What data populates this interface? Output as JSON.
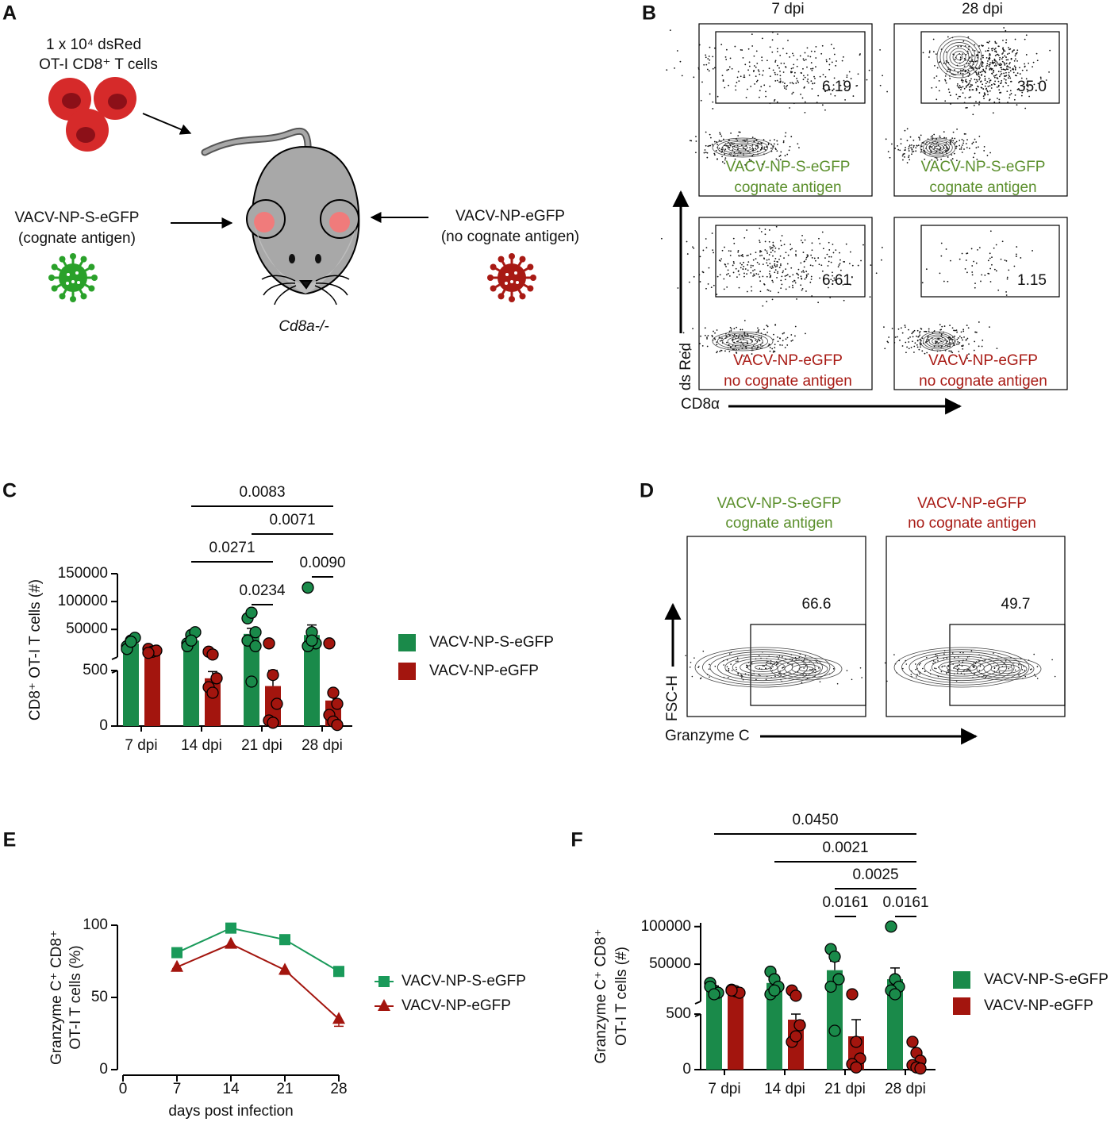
{
  "panel_labels": [
    "A",
    "B",
    "C",
    "D",
    "E",
    "F"
  ],
  "panel_a": {
    "cells_label": [
      "1 x 10⁴ dsRed",
      "OT-I CD8⁺ T cells"
    ],
    "left_virus": [
      "VACV-NP-S-eGFP",
      "(cognate antigen)"
    ],
    "right_virus": [
      "VACV-NP-eGFP",
      "(no cognate antigen)"
    ],
    "mouse_label": "Cd8a-/-"
  },
  "panel_b": {
    "columns": [
      "7 dpi",
      "28 dpi"
    ],
    "plots": [
      {
        "gate_value": "6.19",
        "label": [
          "VACV-NP-S-eGFP",
          "cognate antigen"
        ],
        "color": "#5b8f2c"
      },
      {
        "gate_value": "35.0",
        "label": [
          "VACV-NP-S-eGFP",
          "cognate antigen"
        ],
        "color": "#5b8f2c"
      },
      {
        "gate_value": "6.61",
        "label": [
          "VACV-NP-eGFP",
          "no cognate antigen"
        ],
        "color": "#a81a14"
      },
      {
        "gate_value": "1.15",
        "label": [
          "VACV-NP-eGFP",
          "no cognate antigen"
        ],
        "color": "#a81a14"
      }
    ],
    "y_axis": "ds Red",
    "x_axis": "CD8α"
  },
  "panel_d": {
    "plots": [
      {
        "title": [
          "VACV-NP-S-eGFP",
          "cognate antigen"
        ],
        "gate_value": "66.6",
        "color": "#5b8f2c"
      },
      {
        "title": [
          "VACV-NP-eGFP",
          "no cognate antigen"
        ],
        "gate_value": "49.7",
        "color": "#a81a14"
      }
    ],
    "y_axis": "FSC-H",
    "x_axis": "Granzyme C"
  },
  "chart_data": [
    {
      "type": "bar",
      "ylabel": [
        "CD8⁺ OT-I T cells (#)"
      ],
      "categories": [
        "7 dpi",
        "14 dpi",
        "21 dpi",
        "28 dpi"
      ],
      "ylim": [
        0,
        150000
      ],
      "ybreak": 500,
      "yticks": [
        0,
        500,
        50000,
        100000,
        150000
      ],
      "series": [
        {
          "name": "VACV-NP-S-eGFP",
          "color": "#1a8a4a",
          "values": [
            25000,
            30000,
            42000,
            40000
          ],
          "errors": [
            4000,
            4000,
            10000,
            18000
          ],
          "points": [
            [
              20000,
              30000,
              35000,
              15000,
              28000
            ],
            [
              25000,
              40000,
              45000,
              20000,
              30000
            ],
            [
              70000,
              80000,
              45000,
              30000,
              400,
              20000
            ],
            [
              125000,
              45000,
              25000,
              20000,
              30000
            ]
          ]
        },
        {
          "name": "VACV-NP-eGFP",
          "color": "#a3150e",
          "values": [
            12000,
            430,
            360,
            230
          ],
          "errors": [
            2000,
            60,
            140,
            60
          ],
          "points": [
            [
              15000,
              10000,
              12000,
              8000
            ],
            [
              10000,
              5000,
              430,
              350,
              300
            ],
            [
              25000,
              460,
              200,
              50,
              30
            ],
            [
              25000,
              300,
              200,
              100,
              40,
              10
            ]
          ]
        }
      ],
      "brackets": [
        {
          "label": "0.0083",
          "from": [
            0,
            1
          ],
          "to": [
            1,
            3
          ]
        },
        {
          "label": "0.0071",
          "from": [
            0,
            2
          ],
          "to": [
            1,
            3
          ]
        },
        {
          "label": "0.0271",
          "from": [
            0,
            1
          ],
          "to": [
            1,
            2
          ]
        },
        {
          "label": "0.0234",
          "from": [
            0,
            2
          ],
          "to": [
            1,
            2
          ]
        },
        {
          "label": "0.0090",
          "from": [
            0,
            3
          ],
          "to": [
            1,
            3
          ]
        }
      ]
    },
    {
      "type": "line",
      "xlabel": "days post infection",
      "ylabel": [
        "Granzyme C⁺ CD8⁺",
        "OT-I T cells  (%)"
      ],
      "x": [
        7,
        14,
        21,
        28
      ],
      "xlim": [
        0,
        28
      ],
      "xticks": [
        0,
        7,
        14,
        21,
        28
      ],
      "ylim": [
        0,
        100
      ],
      "yticks": [
        0,
        50,
        100
      ],
      "series": [
        {
          "name": "VACV-NP-S-eGFP",
          "color": "#1a9a5a",
          "marker": "square",
          "values": [
            81,
            98,
            90,
            68
          ],
          "errors": [
            1,
            1,
            1,
            2
          ]
        },
        {
          "name": "VACV-NP-eGFP",
          "color": "#a3150e",
          "marker": "triangle",
          "values": [
            71,
            87,
            69,
            35
          ],
          "errors": [
            1,
            1,
            3,
            5
          ]
        }
      ]
    },
    {
      "type": "bar",
      "ylabel": [
        "Granzyme C⁺ CD8⁺",
        "OT-I T cells (#)"
      ],
      "categories": [
        "7 dpi",
        "14 dpi",
        "21 dpi",
        "28 dpi"
      ],
      "ylim": [
        0,
        105000
      ],
      "ybreak": 500,
      "yticks": [
        0,
        500,
        50000,
        100000
      ],
      "series": [
        {
          "name": "VACV-NP-S-eGFP",
          "color": "#1a8a4a",
          "values": [
            18000,
            25000,
            42000,
            30000
          ],
          "errors": [
            3000,
            4000,
            12000,
            15000
          ],
          "points": [
            [
              25000,
              15000,
              12000,
              20000,
              10000
            ],
            [
              40000,
              30000,
              20000,
              10000,
              15000
            ],
            [
              70000,
              60000,
              30000,
              20000,
              350
            ],
            [
              100000,
              30000,
              20000,
              15000,
              10000
            ]
          ]
        },
        {
          "name": "VACV-NP-eGFP",
          "color": "#a3150e",
          "values": [
            15000,
            450,
            300,
            80
          ],
          "errors": [
            1500,
            50,
            150,
            40
          ],
          "points": [
            [
              16000,
              14000,
              12000,
              15000
            ],
            [
              15000,
              8000,
              400,
              250,
              300
            ],
            [
              10000,
              250,
              100,
              50,
              20
            ],
            [
              250,
              150,
              80,
              40,
              20,
              10
            ]
          ]
        }
      ],
      "brackets": [
        {
          "label": "0.0450",
          "from": [
            0,
            0
          ],
          "to": [
            1,
            3
          ]
        },
        {
          "label": "0.0021",
          "from": [
            0,
            1
          ],
          "to": [
            1,
            3
          ]
        },
        {
          "label": "0.0025",
          "from": [
            0,
            2
          ],
          "to": [
            1,
            3
          ]
        },
        {
          "label": "0.0161",
          "from": [
            0,
            2
          ],
          "to": [
            1,
            2
          ]
        },
        {
          "label": "0.0161",
          "from": [
            0,
            3
          ],
          "to": [
            1,
            3
          ]
        }
      ]
    }
  ]
}
